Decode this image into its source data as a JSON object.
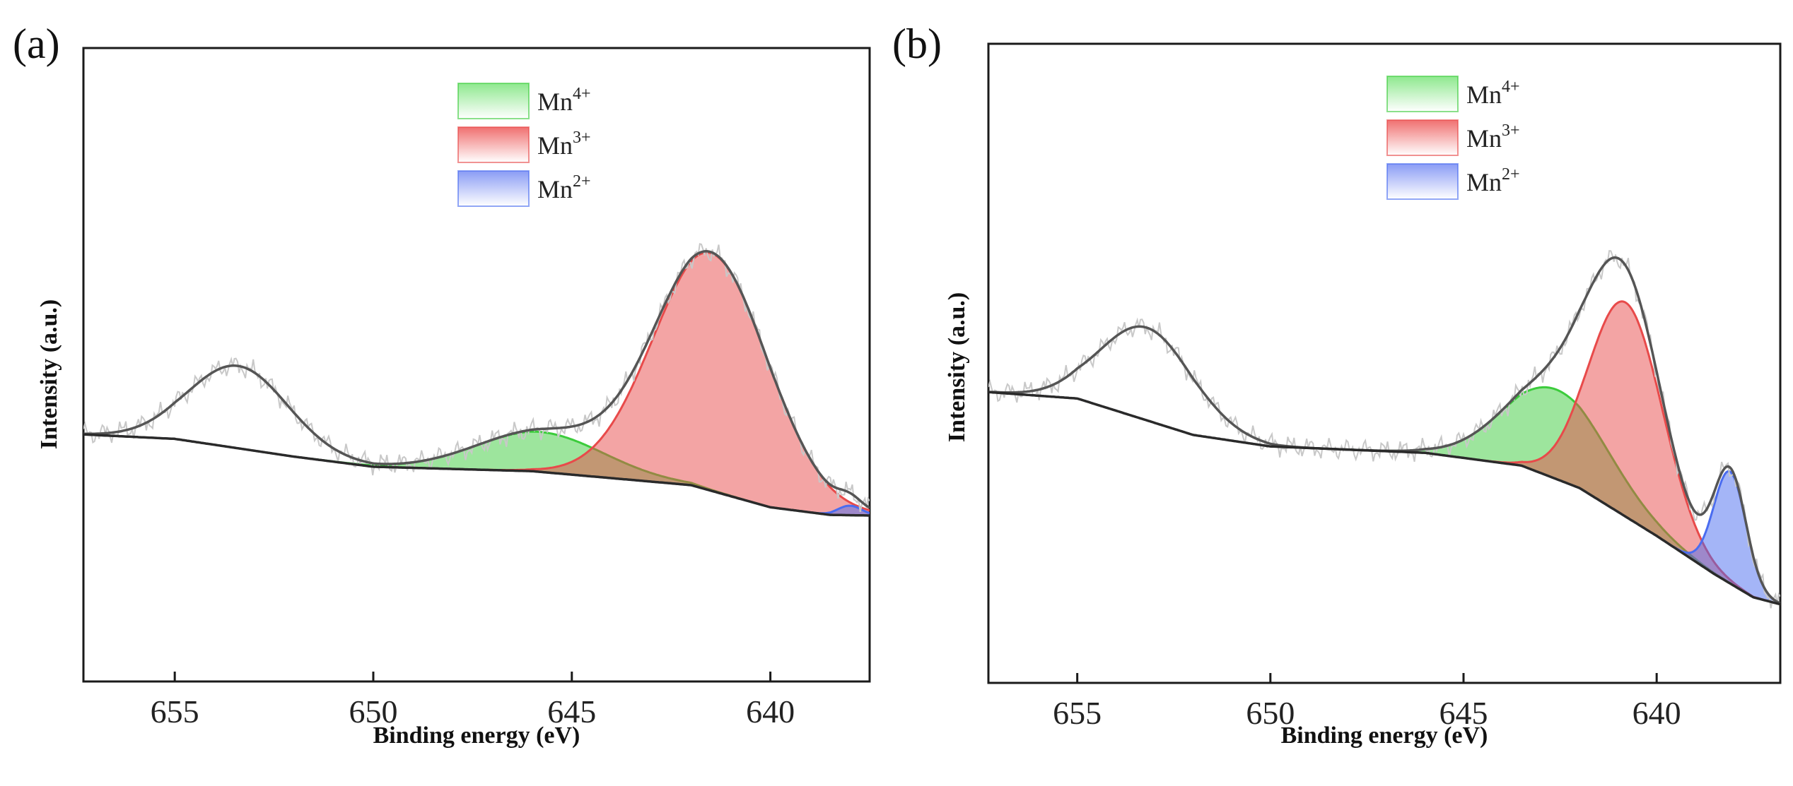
{
  "colors": {
    "mn4": "#3ccc3c",
    "mn3": "#e84a4a",
    "mn2": "#4a6cf0",
    "envelope": "#555555",
    "raw": "#c8c8c8",
    "background": "#2a2a2a"
  },
  "chart_data": [
    {
      "type": "area",
      "panel_label": "(a)",
      "xlabel": "Binding energy (eV)",
      "ylabel": "Intensity (a.u.)",
      "xlim": [
        657.3,
        637.5
      ],
      "ylim": [
        0,
        100
      ],
      "x_ticks": [
        655,
        650,
        645,
        640
      ],
      "x_tick_labels": [
        "655",
        "650",
        "645",
        "640"
      ],
      "legend": [
        {
          "key": "mn4",
          "name": "Mn",
          "sup": "4+"
        },
        {
          "key": "mn3",
          "name": "Mn",
          "sup": "3+"
        },
        {
          "key": "mn2",
          "name": "Mn",
          "sup": "2+"
        }
      ],
      "background_points": [
        [
          657.3,
          39.0
        ],
        [
          655,
          38.3
        ],
        [
          652,
          35.5
        ],
        [
          650,
          33.9
        ],
        [
          646,
          33.2
        ],
        [
          642,
          31.0
        ],
        [
          640,
          27.5
        ],
        [
          638.5,
          26.3
        ],
        [
          637.5,
          26.2
        ]
      ],
      "peaks": [
        {
          "key": "mn4",
          "center": 645.8,
          "height": 6.3,
          "sigma": 1.6
        },
        {
          "key": "mn3",
          "center": 641.5,
          "height": 37.5,
          "sigma": 1.45
        },
        {
          "key": "mn2",
          "center": 638.0,
          "height": 1.5,
          "sigma": 0.3
        },
        {
          "key": "satellite",
          "center": 653.4,
          "height": 13.0,
          "sigma": 1.25
        }
      ]
    },
    {
      "type": "area",
      "panel_label": "(b)",
      "xlabel": "Binding energy (eV)",
      "ylabel": "Intensity (a.u.)",
      "xlim": [
        657.3,
        636.8
      ],
      "ylim": [
        0,
        100
      ],
      "x_ticks": [
        655,
        650,
        645,
        640
      ],
      "x_tick_labels": [
        "655",
        "650",
        "645",
        "640"
      ],
      "legend": [
        {
          "key": "mn4",
          "name": "Mn",
          "sup": "4+"
        },
        {
          "key": "mn3",
          "name": "Mn",
          "sup": "3+"
        },
        {
          "key": "mn2",
          "name": "Mn",
          "sup": "2+"
        }
      ],
      "background_points": [
        [
          657.3,
          45.5
        ],
        [
          655,
          44.5
        ],
        [
          652,
          38.8
        ],
        [
          650,
          37.0
        ],
        [
          646,
          36.0
        ],
        [
          643.5,
          34.0
        ],
        [
          642,
          30.5
        ],
        [
          640,
          23.0
        ],
        [
          638.5,
          17.0
        ],
        [
          637.5,
          13.4
        ],
        [
          636.8,
          12.3
        ]
      ],
      "peaks": [
        {
          "key": "mn4",
          "center": 642.6,
          "height": 14.0,
          "sigma": 1.35
        },
        {
          "key": "mn3",
          "center": 640.8,
          "height": 33.5,
          "sigma": 0.95
        },
        {
          "key": "mn2",
          "center": 638.1,
          "height": 17.5,
          "sigma": 0.42
        },
        {
          "key": "satellite",
          "center": 653.2,
          "height": 14.5,
          "sigma": 1.2
        }
      ]
    }
  ]
}
